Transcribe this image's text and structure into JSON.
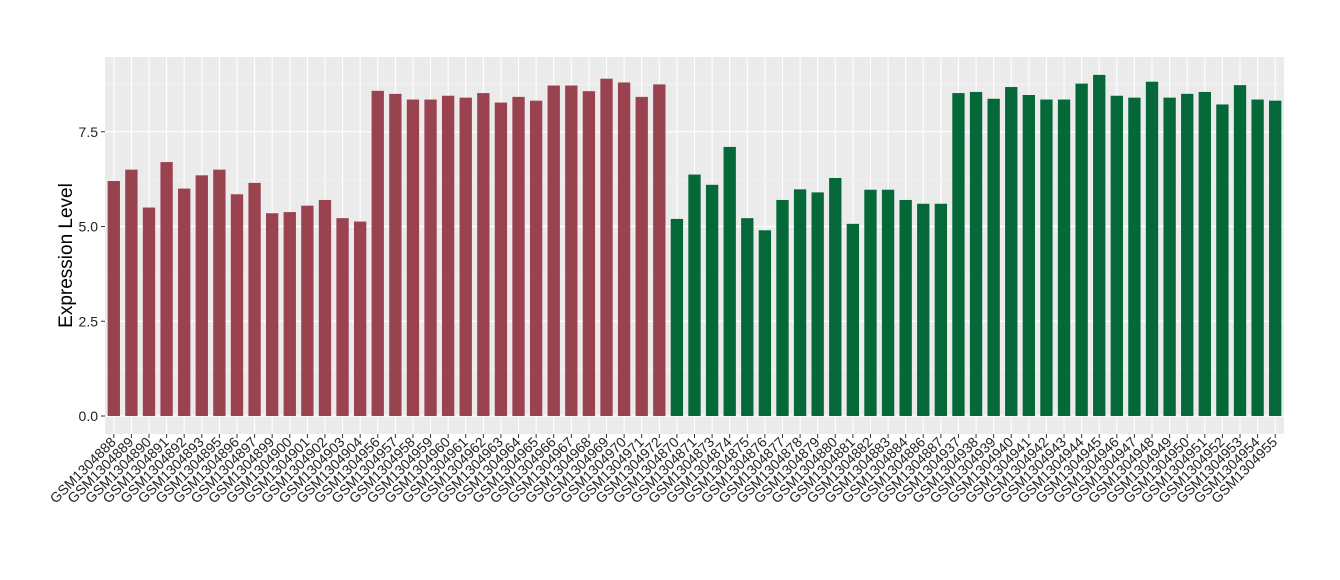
{
  "chart_data": {
    "type": "bar",
    "title": "",
    "xlabel": "",
    "ylabel": "Expression Level",
    "ylim": [
      0,
      9.3
    ],
    "yticks": [
      0.0,
      2.5,
      5.0,
      7.5
    ],
    "ytick_labels": [
      "0.0",
      "2.5",
      "5.0",
      "7.5"
    ],
    "grid": true,
    "legend": "none",
    "background": "#ebebeb",
    "gridline_color": "#ffffff",
    "group_colors": [
      "#9a4250",
      "#046838"
    ],
    "categories": [
      "GSM1304888",
      "GSM1304889",
      "GSM1304890",
      "GSM1304891",
      "GSM1304892",
      "GSM1304893",
      "GSM1304895",
      "GSM1304896",
      "GSM1304897",
      "GSM1304899",
      "GSM1304900",
      "GSM1304901",
      "GSM1304902",
      "GSM1304903",
      "GSM1304904",
      "GSM1304956",
      "GSM1304957",
      "GSM1304958",
      "GSM1304959",
      "GSM1304960",
      "GSM1304961",
      "GSM1304962",
      "GSM1304963",
      "GSM1304964",
      "GSM1304965",
      "GSM1304966",
      "GSM1304967",
      "GSM1304968",
      "GSM1304969",
      "GSM1304970",
      "GSM1304971",
      "GSM1304972",
      "GSM1304870",
      "GSM1304871",
      "GSM1304873",
      "GSM1304874",
      "GSM1304875",
      "GSM1304876",
      "GSM1304877",
      "GSM1304878",
      "GSM1304879",
      "GSM1304880",
      "GSM1304881",
      "GSM1304882",
      "GSM1304883",
      "GSM1304884",
      "GSM1304886",
      "GSM1304887",
      "GSM1304937",
      "GSM1304938",
      "GSM1304939",
      "GSM1304940",
      "GSM1304941",
      "GSM1304942",
      "GSM1304943",
      "GSM1304944",
      "GSM1304945",
      "GSM1304946",
      "GSM1304947",
      "GSM1304948",
      "GSM1304949",
      "GSM1304950",
      "GSM1304951",
      "GSM1304952",
      "GSM1304953",
      "GSM1304954",
      "GSM1304955"
    ],
    "values": [
      6.2,
      6.5,
      5.5,
      6.7,
      6.0,
      6.35,
      6.5,
      5.85,
      6.15,
      5.35,
      5.38,
      5.55,
      5.7,
      5.22,
      5.13,
      8.58,
      8.5,
      8.35,
      8.35,
      8.45,
      8.4,
      8.52,
      8.27,
      8.42,
      8.32,
      8.72,
      8.72,
      8.57,
      8.9,
      8.8,
      8.42,
      8.75,
      5.2,
      6.37,
      6.1,
      7.1,
      5.22,
      4.9,
      5.7,
      5.98,
      5.9,
      6.28,
      5.07,
      5.97,
      5.97,
      5.7,
      5.6,
      5.6,
      8.52,
      8.55,
      8.37,
      8.68,
      8.47,
      8.35,
      8.35,
      8.77,
      9.0,
      8.45,
      8.4,
      8.82,
      8.4,
      8.5,
      8.55,
      8.22,
      8.73,
      8.35,
      8.32
    ],
    "groups": [
      0,
      0,
      0,
      0,
      0,
      0,
      0,
      0,
      0,
      0,
      0,
      0,
      0,
      0,
      0,
      0,
      0,
      0,
      0,
      0,
      0,
      0,
      0,
      0,
      0,
      0,
      0,
      0,
      0,
      0,
      0,
      0,
      1,
      1,
      1,
      1,
      1,
      1,
      1,
      1,
      1,
      1,
      1,
      1,
      1,
      1,
      1,
      1,
      1,
      1,
      1,
      1,
      1,
      1,
      1,
      1,
      1,
      1,
      1,
      1,
      1,
      1,
      1,
      1,
      1,
      1,
      1
    ]
  }
}
